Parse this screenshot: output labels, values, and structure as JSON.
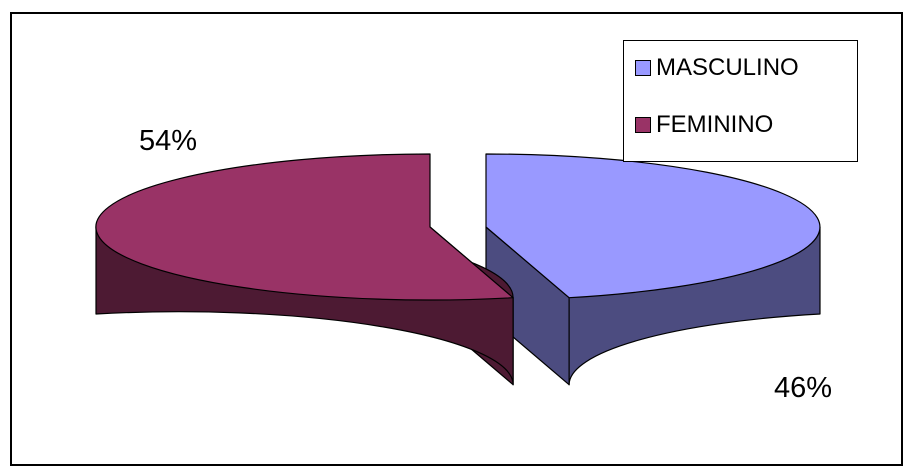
{
  "chart_data": {
    "type": "pie",
    "style": "3d-exploded",
    "categories": [
      "MASCULINO",
      "FEMININO"
    ],
    "values": [
      46,
      54
    ],
    "data_labels": [
      "46%",
      "54%"
    ],
    "colors": {
      "MASCULINO": "#9999ff",
      "MASCULINO_side": "#4c4c80",
      "FEMININO": "#993366",
      "FEMININO_side": "#4d1a33"
    },
    "legend_position": "top-right",
    "legend": [
      {
        "label": "MASCULINO",
        "color": "#9999ff"
      },
      {
        "label": "FEMININO",
        "color": "#993366"
      }
    ]
  }
}
